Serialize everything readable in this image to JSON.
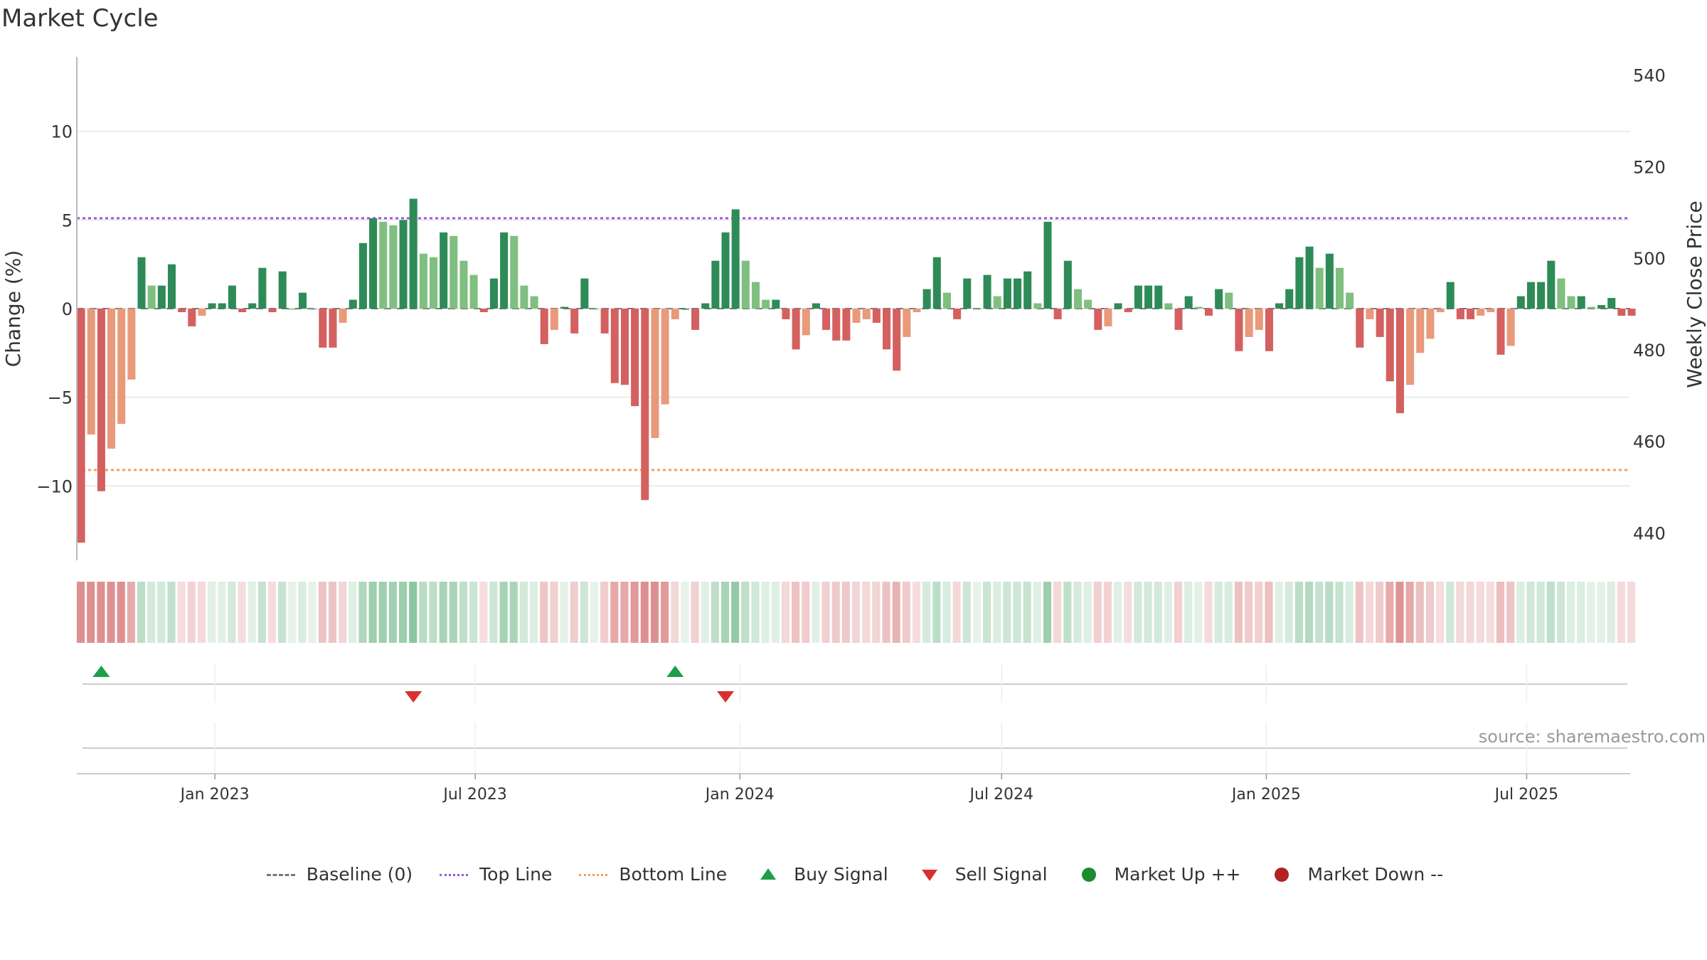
{
  "title": "Market Cycle",
  "source": "source: sharemaestro.com",
  "colors": {
    "strong_up": "#2e8b57",
    "weak_up": "#7fbf7f",
    "strong_down": "#d46060",
    "weak_down": "#e89a7a",
    "top_line": "#9b59d8",
    "bottom_line": "#f0a060",
    "buy": "#1e9e4a",
    "sell": "#d93030",
    "market_up": "#1e8c2e",
    "market_down": "#b22222"
  },
  "legend": [
    {
      "label": "Baseline (0)",
      "swatch": "baseline"
    },
    {
      "label": "Top Line",
      "swatch": "top"
    },
    {
      "label": "Bottom Line",
      "swatch": "bottom"
    },
    {
      "label": "Buy Signal",
      "swatch": "tri-up"
    },
    {
      "label": "Sell Signal",
      "swatch": "tri-down"
    },
    {
      "label": "Market Up ++",
      "swatch": "dot-up"
    },
    {
      "label": "Market Down --",
      "swatch": "dot-down"
    }
  ],
  "chart_data": {
    "type": "bar",
    "ylabel": "Change (%)",
    "y2label": "Weekly Close Price",
    "ylim": [
      -14.2,
      14.2
    ],
    "y2lim": [
      434,
      544
    ],
    "yticks": [
      10,
      5,
      0,
      -5,
      -10
    ],
    "ytick_labels": [
      "10",
      "5",
      "0",
      "−5",
      "−10"
    ],
    "y2ticks": [
      540,
      520,
      500,
      480,
      460,
      440
    ],
    "y2tick_labels": [
      "540",
      "520",
      "500",
      "480",
      "460",
      "440"
    ],
    "xlim": [
      "2022-09-27",
      "2025-09-11"
    ],
    "xticks": [
      "2023-01-01",
      "2023-07-01",
      "2024-01-01",
      "2024-07-01",
      "2025-01-01",
      "2025-07-01"
    ],
    "xtick_labels": [
      "Jan 2023",
      "Jul 2023",
      "Jan 2024",
      "Jul 2024",
      "Jan 2025",
      "Jul 2025"
    ],
    "top_line": 5.1,
    "bottom_line": -9.1,
    "grid": true,
    "legend_position": "bottom-center",
    "series": [
      {
        "start_date": "2022-09-30",
        "interval": "weekly",
        "values": [
          -13.2,
          -7.1,
          -10.3,
          -7.9,
          -6.5,
          -4.0,
          2.9,
          1.3,
          1.3,
          2.5,
          -0.2,
          -1.0,
          -0.4,
          0.3,
          0.3,
          1.3,
          -0.2,
          0.3,
          2.3,
          -0.2,
          2.1,
          0.0,
          0.9,
          0.0,
          -2.2,
          -2.2,
          -0.8,
          0.5,
          3.7,
          5.1,
          4.9,
          4.7,
          5.0,
          6.2,
          3.1,
          2.9,
          4.3,
          4.1,
          2.7,
          1.9,
          -0.2,
          1.7,
          4.3,
          4.1,
          1.3,
          0.7,
          -2.0,
          -1.2,
          0.1,
          -1.4,
          1.7,
          0.0,
          -1.4,
          -4.2,
          -4.3,
          -5.5,
          -10.8,
          -7.3,
          -5.4,
          -0.6,
          0.0,
          -1.2,
          0.3,
          2.7,
          4.3,
          5.6,
          2.7,
          1.5,
          0.5,
          0.5,
          -0.6,
          -2.3,
          -1.5,
          0.3,
          -1.2,
          -1.8,
          -1.8,
          -0.8,
          -0.6,
          -0.8,
          -2.3,
          -3.5,
          -1.6,
          -0.2,
          1.1,
          2.9,
          0.9,
          -0.6,
          1.7,
          0.0,
          1.9,
          0.7,
          1.7,
          1.7,
          2.1,
          0.3,
          4.9,
          -0.6,
          2.7,
          1.1,
          0.5,
          -1.2,
          -1.0,
          0.3,
          -0.2,
          1.3,
          1.3,
          1.3,
          0.3,
          -1.2,
          0.7,
          0.1,
          -0.4,
          1.1,
          0.9,
          -2.4,
          -1.6,
          -1.2,
          -2.4,
          0.3,
          1.1,
          2.9,
          3.5,
          2.3,
          3.1,
          2.3,
          0.9,
          -2.2,
          -0.6,
          -1.6,
          -4.1,
          -5.9,
          -4.3,
          -2.5,
          -1.7,
          -0.2,
          1.5,
          -0.6,
          -0.6,
          -0.4,
          -0.2,
          -2.6,
          -2.1,
          0.7,
          1.5,
          1.5,
          2.7,
          1.7,
          0.7,
          0.7,
          0.1,
          0.2,
          0.6,
          -0.4,
          -0.4
        ]
      }
    ],
    "buy_signals": [
      "2022-10-14",
      "2023-11-17"
    ],
    "sell_signals": [
      "2023-05-19",
      "2023-12-22"
    ]
  }
}
